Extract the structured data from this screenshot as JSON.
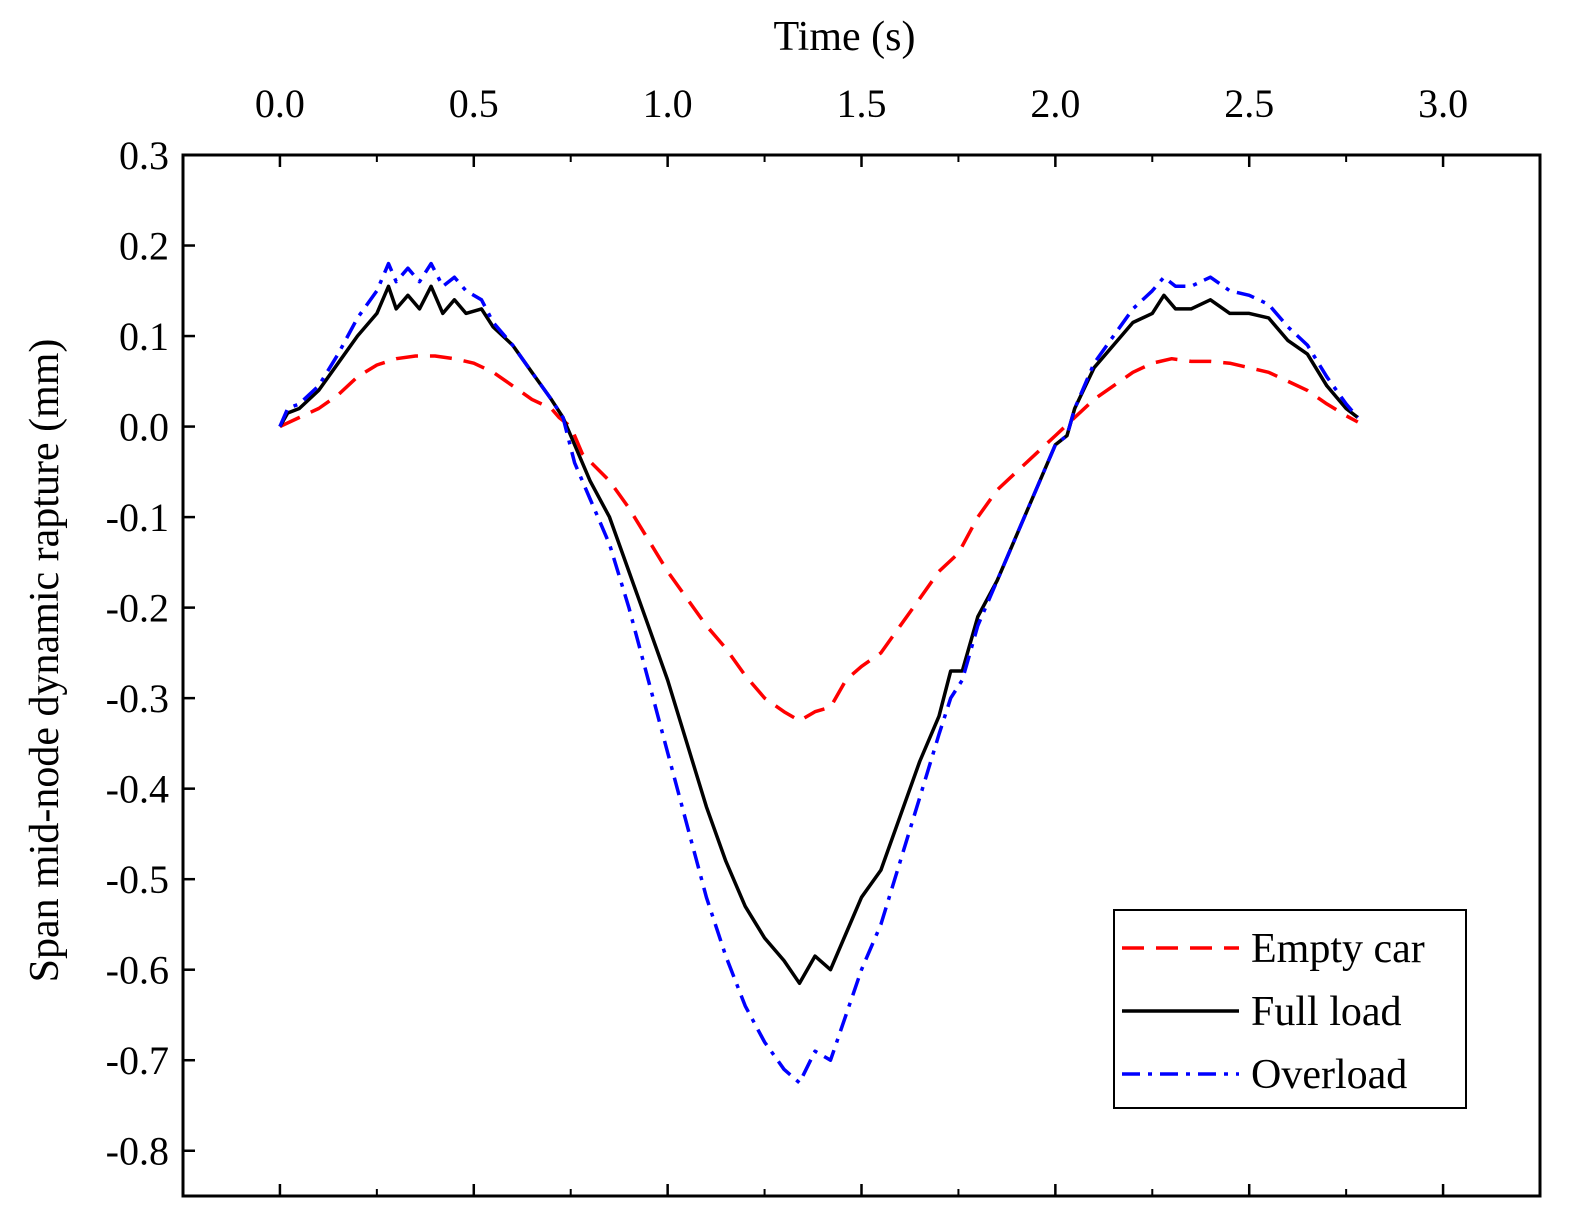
{
  "chart_data": {
    "type": "line",
    "title": "",
    "xlabel": "Time (s)",
    "ylabel": "Span mid-node dynamic rapture (mm)",
    "xlim": [
      -0.25,
      3.25
    ],
    "ylim": [
      -0.85,
      0.3
    ],
    "xticks": [
      0.0,
      0.5,
      1.0,
      1.5,
      2.0,
      2.5,
      3.0
    ],
    "xtick_labels": [
      "0.0",
      "0.5",
      "1.0",
      "1.5",
      "2.0",
      "2.5",
      "3.0"
    ],
    "yticks": [
      0.3,
      0.2,
      0.1,
      0.0,
      -0.1,
      -0.2,
      -0.3,
      -0.4,
      -0.5,
      -0.6,
      -0.7,
      -0.8
    ],
    "ytick_labels": [
      "0.3",
      "0.2",
      "0.1",
      "0.0",
      "-0.1",
      "-0.2",
      "-0.3",
      "-0.4",
      "-0.5",
      "-0.6",
      "-0.7",
      "-0.8"
    ],
    "x_axis_position": "top",
    "grid": false,
    "legend_position": "bottom-right",
    "series": [
      {
        "name": "Empty car",
        "color": "#ff0000",
        "style": "dashed",
        "points": [
          [
            0.0,
            0.0
          ],
          [
            0.05,
            0.01
          ],
          [
            0.1,
            0.02
          ],
          [
            0.15,
            0.035
          ],
          [
            0.2,
            0.055
          ],
          [
            0.25,
            0.068
          ],
          [
            0.3,
            0.075
          ],
          [
            0.35,
            0.078
          ],
          [
            0.4,
            0.078
          ],
          [
            0.45,
            0.075
          ],
          [
            0.5,
            0.07
          ],
          [
            0.55,
            0.06
          ],
          [
            0.6,
            0.045
          ],
          [
            0.65,
            0.03
          ],
          [
            0.7,
            0.02
          ],
          [
            0.72,
            0.01
          ],
          [
            0.75,
            0.0
          ],
          [
            0.78,
            -0.03
          ],
          [
            0.85,
            -0.06
          ],
          [
            0.9,
            -0.09
          ],
          [
            0.95,
            -0.125
          ],
          [
            1.0,
            -0.16
          ],
          [
            1.05,
            -0.19
          ],
          [
            1.1,
            -0.22
          ],
          [
            1.15,
            -0.245
          ],
          [
            1.2,
            -0.275
          ],
          [
            1.25,
            -0.3
          ],
          [
            1.3,
            -0.315
          ],
          [
            1.34,
            -0.325
          ],
          [
            1.38,
            -0.315
          ],
          [
            1.42,
            -0.31
          ],
          [
            1.46,
            -0.28
          ],
          [
            1.5,
            -0.265
          ],
          [
            1.55,
            -0.25
          ],
          [
            1.6,
            -0.22
          ],
          [
            1.65,
            -0.19
          ],
          [
            1.7,
            -0.16
          ],
          [
            1.75,
            -0.14
          ],
          [
            1.8,
            -0.1
          ],
          [
            1.85,
            -0.07
          ],
          [
            1.9,
            -0.05
          ],
          [
            1.95,
            -0.03
          ],
          [
            2.0,
            -0.01
          ],
          [
            2.05,
            0.01
          ],
          [
            2.1,
            0.03
          ],
          [
            2.15,
            0.045
          ],
          [
            2.2,
            0.06
          ],
          [
            2.25,
            0.07
          ],
          [
            2.3,
            0.075
          ],
          [
            2.35,
            0.072
          ],
          [
            2.4,
            0.072
          ],
          [
            2.45,
            0.07
          ],
          [
            2.5,
            0.065
          ],
          [
            2.55,
            0.06
          ],
          [
            2.6,
            0.05
          ],
          [
            2.65,
            0.04
          ],
          [
            2.7,
            0.025
          ],
          [
            2.75,
            0.012
          ],
          [
            2.78,
            0.005
          ]
        ]
      },
      {
        "name": "Full load",
        "color": "#000000",
        "style": "solid",
        "points": [
          [
            0.0,
            0.0
          ],
          [
            0.02,
            0.015
          ],
          [
            0.05,
            0.02
          ],
          [
            0.1,
            0.04
          ],
          [
            0.15,
            0.07
          ],
          [
            0.2,
            0.1
          ],
          [
            0.25,
            0.125
          ],
          [
            0.28,
            0.155
          ],
          [
            0.3,
            0.13
          ],
          [
            0.33,
            0.145
          ],
          [
            0.36,
            0.13
          ],
          [
            0.39,
            0.155
          ],
          [
            0.42,
            0.125
          ],
          [
            0.45,
            0.14
          ],
          [
            0.48,
            0.125
          ],
          [
            0.52,
            0.13
          ],
          [
            0.55,
            0.11
          ],
          [
            0.6,
            0.09
          ],
          [
            0.65,
            0.06
          ],
          [
            0.7,
            0.03
          ],
          [
            0.73,
            0.01
          ],
          [
            0.76,
            -0.02
          ],
          [
            0.8,
            -0.06
          ],
          [
            0.85,
            -0.1
          ],
          [
            0.9,
            -0.16
          ],
          [
            0.95,
            -0.22
          ],
          [
            1.0,
            -0.28
          ],
          [
            1.05,
            -0.35
          ],
          [
            1.1,
            -0.42
          ],
          [
            1.15,
            -0.48
          ],
          [
            1.2,
            -0.53
          ],
          [
            1.25,
            -0.565
          ],
          [
            1.3,
            -0.59
          ],
          [
            1.34,
            -0.615
          ],
          [
            1.38,
            -0.585
          ],
          [
            1.42,
            -0.6
          ],
          [
            1.46,
            -0.56
          ],
          [
            1.5,
            -0.52
          ],
          [
            1.55,
            -0.49
          ],
          [
            1.6,
            -0.43
          ],
          [
            1.65,
            -0.37
          ],
          [
            1.7,
            -0.32
          ],
          [
            1.73,
            -0.27
          ],
          [
            1.76,
            -0.27
          ],
          [
            1.8,
            -0.21
          ],
          [
            1.85,
            -0.17
          ],
          [
            1.9,
            -0.12
          ],
          [
            1.95,
            -0.07
          ],
          [
            2.0,
            -0.02
          ],
          [
            2.03,
            -0.01
          ],
          [
            2.05,
            0.02
          ],
          [
            2.1,
            0.065
          ],
          [
            2.15,
            0.09
          ],
          [
            2.2,
            0.115
          ],
          [
            2.25,
            0.125
          ],
          [
            2.28,
            0.145
          ],
          [
            2.31,
            0.13
          ],
          [
            2.35,
            0.13
          ],
          [
            2.4,
            0.14
          ],
          [
            2.45,
            0.125
          ],
          [
            2.5,
            0.125
          ],
          [
            2.55,
            0.12
          ],
          [
            2.6,
            0.095
          ],
          [
            2.65,
            0.08
          ],
          [
            2.7,
            0.045
          ],
          [
            2.75,
            0.02
          ],
          [
            2.78,
            0.01
          ]
        ]
      },
      {
        "name": "Overload",
        "color": "#0000ff",
        "style": "dash-dot",
        "points": [
          [
            0.0,
            0.0
          ],
          [
            0.02,
            0.02
          ],
          [
            0.05,
            0.025
          ],
          [
            0.1,
            0.045
          ],
          [
            0.15,
            0.08
          ],
          [
            0.2,
            0.12
          ],
          [
            0.25,
            0.15
          ],
          [
            0.28,
            0.18
          ],
          [
            0.3,
            0.16
          ],
          [
            0.33,
            0.175
          ],
          [
            0.36,
            0.16
          ],
          [
            0.39,
            0.18
          ],
          [
            0.42,
            0.155
          ],
          [
            0.45,
            0.165
          ],
          [
            0.48,
            0.15
          ],
          [
            0.52,
            0.14
          ],
          [
            0.55,
            0.115
          ],
          [
            0.6,
            0.09
          ],
          [
            0.65,
            0.06
          ],
          [
            0.7,
            0.03
          ],
          [
            0.73,
            0.01
          ],
          [
            0.76,
            -0.04
          ],
          [
            0.8,
            -0.08
          ],
          [
            0.85,
            -0.13
          ],
          [
            0.9,
            -0.2
          ],
          [
            0.95,
            -0.28
          ],
          [
            1.0,
            -0.36
          ],
          [
            1.05,
            -0.44
          ],
          [
            1.1,
            -0.52
          ],
          [
            1.15,
            -0.585
          ],
          [
            1.2,
            -0.64
          ],
          [
            1.25,
            -0.68
          ],
          [
            1.3,
            -0.71
          ],
          [
            1.34,
            -0.725
          ],
          [
            1.38,
            -0.69
          ],
          [
            1.42,
            -0.7
          ],
          [
            1.46,
            -0.65
          ],
          [
            1.5,
            -0.6
          ],
          [
            1.55,
            -0.55
          ],
          [
            1.6,
            -0.48
          ],
          [
            1.65,
            -0.41
          ],
          [
            1.7,
            -0.34
          ],
          [
            1.73,
            -0.3
          ],
          [
            1.76,
            -0.28
          ],
          [
            1.8,
            -0.22
          ],
          [
            1.85,
            -0.17
          ],
          [
            1.9,
            -0.12
          ],
          [
            1.95,
            -0.07
          ],
          [
            2.0,
            -0.02
          ],
          [
            2.03,
            -0.01
          ],
          [
            2.05,
            0.02
          ],
          [
            2.1,
            0.07
          ],
          [
            2.15,
            0.1
          ],
          [
            2.2,
            0.13
          ],
          [
            2.25,
            0.15
          ],
          [
            2.28,
            0.165
          ],
          [
            2.31,
            0.155
          ],
          [
            2.35,
            0.155
          ],
          [
            2.4,
            0.165
          ],
          [
            2.45,
            0.15
          ],
          [
            2.5,
            0.145
          ],
          [
            2.55,
            0.135
          ],
          [
            2.6,
            0.11
          ],
          [
            2.65,
            0.09
          ],
          [
            2.7,
            0.055
          ],
          [
            2.75,
            0.025
          ],
          [
            2.78,
            0.01
          ]
        ]
      }
    ]
  }
}
